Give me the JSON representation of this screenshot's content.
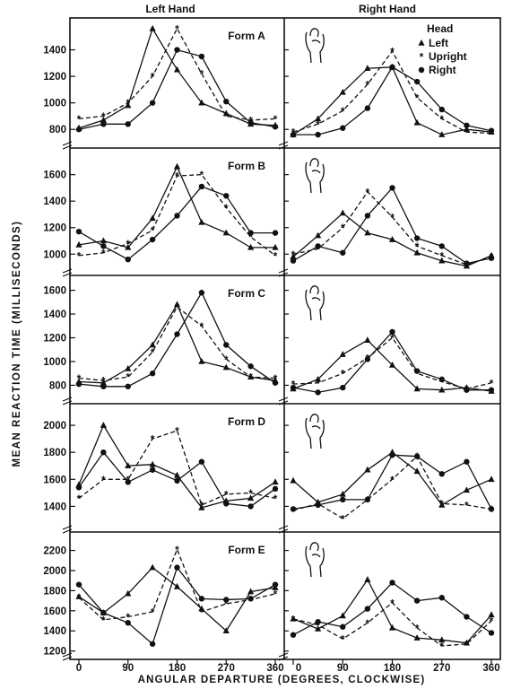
{
  "column_titles": [
    "Left Hand",
    "Right Hand"
  ],
  "ylabel": "MEAN REACTION TIME (MILLISECONDS)",
  "xlabel": "ANGULAR DEPARTURE (DEGREES, CLOCKWISE)",
  "xticks": [
    0,
    90,
    180,
    270,
    360
  ],
  "legend": {
    "title": "Head",
    "items": [
      "Left",
      "Upright",
      "Right"
    ]
  },
  "chart_data": [
    {
      "type": "line",
      "form": "Form A",
      "ylim": [
        700,
        1600
      ],
      "yticks": [
        800,
        1000,
        1200,
        1400
      ],
      "left_hand": {
        "x": [
          0,
          45,
          90,
          135,
          180,
          225,
          270,
          315,
          360
        ],
        "series": [
          {
            "name": "Left",
            "values": [
              810,
              870,
              980,
              1560,
              1250,
              1000,
              920,
              840,
              830
            ]
          },
          {
            "name": "Upright",
            "values": [
              880,
              900,
              1000,
              1200,
              1560,
              1220,
              900,
              870,
              880
            ]
          },
          {
            "name": "Right",
            "values": [
              800,
              840,
              840,
              1000,
              1400,
              1350,
              1010,
              850,
              820
            ]
          }
        ]
      },
      "right_hand": {
        "x": [
          0,
          45,
          90,
          135,
          180,
          225,
          270,
          315,
          360
        ],
        "series": [
          {
            "name": "Left",
            "values": [
              760,
              880,
              1080,
              1260,
              1270,
              850,
              760,
              800,
              780
            ]
          },
          {
            "name": "Upright",
            "values": [
              780,
              840,
              940,
              1140,
              1390,
              1040,
              880,
              780,
              770
            ]
          },
          {
            "name": "Right",
            "values": [
              760,
              760,
              810,
              960,
              1270,
              1160,
              950,
              830,
              790
            ]
          }
        ]
      }
    },
    {
      "type": "line",
      "form": "Form B",
      "ylim": [
        880,
        1760
      ],
      "yticks": [
        1000,
        1200,
        1400,
        1600
      ],
      "left_hand": {
        "x": [
          0,
          45,
          90,
          135,
          180,
          225,
          270,
          315,
          360
        ],
        "series": [
          {
            "name": "Left",
            "values": [
              1070,
              1100,
              1050,
              1270,
              1660,
              1240,
              1160,
              1050,
              1050
            ]
          },
          {
            "name": "Upright",
            "values": [
              990,
              1010,
              1080,
              1180,
              1590,
              1600,
              1350,
              1130,
              990
            ]
          },
          {
            "name": "Right",
            "values": [
              1170,
              1060,
              960,
              1110,
              1290,
              1510,
              1440,
              1160,
              1160
            ]
          }
        ]
      },
      "right_hand": {
        "x": [
          0,
          45,
          90,
          135,
          180,
          225,
          270,
          315,
          360
        ],
        "series": [
          {
            "name": "Left",
            "values": [
              980,
              1140,
              1310,
              1160,
              1110,
              1010,
              950,
              910,
              990
            ]
          },
          {
            "name": "Upright",
            "values": [
              1000,
              1040,
              1200,
              1470,
              1280,
              1060,
              990,
              920,
              980
            ]
          },
          {
            "name": "Right",
            "values": [
              950,
              1060,
              1010,
              1290,
              1500,
              1120,
              1060,
              930,
              970
            ]
          }
        ]
      }
    },
    {
      "type": "line",
      "form": "Form C",
      "ylim": [
        690,
        1680
      ],
      "yticks": [
        800,
        1000,
        1200,
        1400,
        1600
      ],
      "left_hand": {
        "x": [
          0,
          45,
          90,
          135,
          180,
          225,
          270,
          315,
          360
        ],
        "series": [
          {
            "name": "Left",
            "values": [
              830,
              820,
              940,
              1140,
              1480,
              1000,
              950,
              870,
              840
            ]
          },
          {
            "name": "Upright",
            "values": [
              860,
              840,
              870,
              1080,
              1460,
              1300,
              1020,
              870,
              860
            ]
          },
          {
            "name": "Right",
            "values": [
              810,
              790,
              790,
              900,
              1230,
              1580,
              1140,
              960,
              820
            ]
          }
        ]
      },
      "right_hand": {
        "x": [
          0,
          45,
          90,
          135,
          180,
          225,
          270,
          315,
          360
        ],
        "series": [
          {
            "name": "Left",
            "values": [
              770,
              850,
              1060,
              1180,
              970,
              770,
              760,
              780,
              750
            ]
          },
          {
            "name": "Upright",
            "values": [
              810,
              820,
              900,
              1030,
              1200,
              900,
              830,
              770,
              820
            ]
          },
          {
            "name": "Right",
            "values": [
              780,
              740,
              780,
              1020,
              1250,
              920,
              850,
              760,
              760
            ]
          }
        ]
      }
    },
    {
      "type": "line",
      "form": "Form D",
      "ylim": [
        1250,
        2120
      ],
      "yticks": [
        1400,
        1600,
        1800,
        2000
      ],
      "left_hand": {
        "x": [
          0,
          45,
          90,
          135,
          180,
          225,
          270,
          315,
          360
        ],
        "series": [
          {
            "name": "Left",
            "values": [
              1560,
              2000,
              1700,
              1710,
              1630,
              1390,
              1440,
              1460,
              1580
            ]
          },
          {
            "name": "Upright",
            "values": [
              1460,
              1600,
              1600,
              1900,
              1960,
              1410,
              1490,
              1500,
              1460
            ]
          },
          {
            "name": "Right",
            "values": [
              1540,
              1800,
              1580,
              1670,
              1590,
              1730,
              1420,
              1400,
              1530
            ]
          }
        ]
      },
      "right_hand": {
        "x": [
          0,
          45,
          90,
          135,
          180,
          225,
          270,
          315,
          360
        ],
        "series": [
          {
            "name": "Left",
            "values": [
              1590,
              1430,
              1490,
              1670,
              1800,
              1660,
              1410,
              1520,
              1600
            ]
          },
          {
            "name": "Upright",
            "values": [
              1370,
              1420,
              1310,
              1450,
              1600,
              1770,
              1420,
              1410,
              1380
            ]
          },
          {
            "name": "Right",
            "values": [
              1380,
              1410,
              1450,
              1450,
              1780,
              1770,
              1640,
              1730,
              1380
            ]
          }
        ]
      }
    },
    {
      "type": "line",
      "form": "Form E",
      "ylim": [
        1170,
        2330
      ],
      "yticks": [
        1200,
        1400,
        1600,
        1800,
        2000,
        2200
      ],
      "left_hand": {
        "x": [
          0,
          45,
          90,
          135,
          180,
          225,
          270,
          315,
          360
        ],
        "series": [
          {
            "name": "Left",
            "values": [
              1740,
              1580,
              1770,
              2030,
              1840,
              1620,
              1400,
              1790,
              1830
            ]
          },
          {
            "name": "Upright",
            "values": [
              1730,
              1510,
              1540,
              1590,
              2210,
              1590,
              1670,
              1710,
              1770
            ]
          },
          {
            "name": "Right",
            "values": [
              1860,
              1580,
              1480,
              1270,
              2030,
              1720,
              1710,
              1720,
              1860
            ]
          }
        ]
      },
      "right_hand": {
        "x": [
          0,
          45,
          90,
          135,
          180,
          225,
          270,
          315,
          360
        ],
        "series": [
          {
            "name": "Left",
            "values": [
              1520,
              1420,
              1550,
              1910,
              1430,
              1330,
              1310,
              1280,
              1560
            ]
          },
          {
            "name": "Upright",
            "values": [
              1520,
              1460,
              1320,
              1480,
              1680,
              1430,
              1250,
              1270,
              1500
            ]
          },
          {
            "name": "Right",
            "values": [
              1360,
              1490,
              1440,
              1620,
              1880,
              1700,
              1730,
              1540,
              1380
            ]
          }
        ]
      }
    }
  ]
}
